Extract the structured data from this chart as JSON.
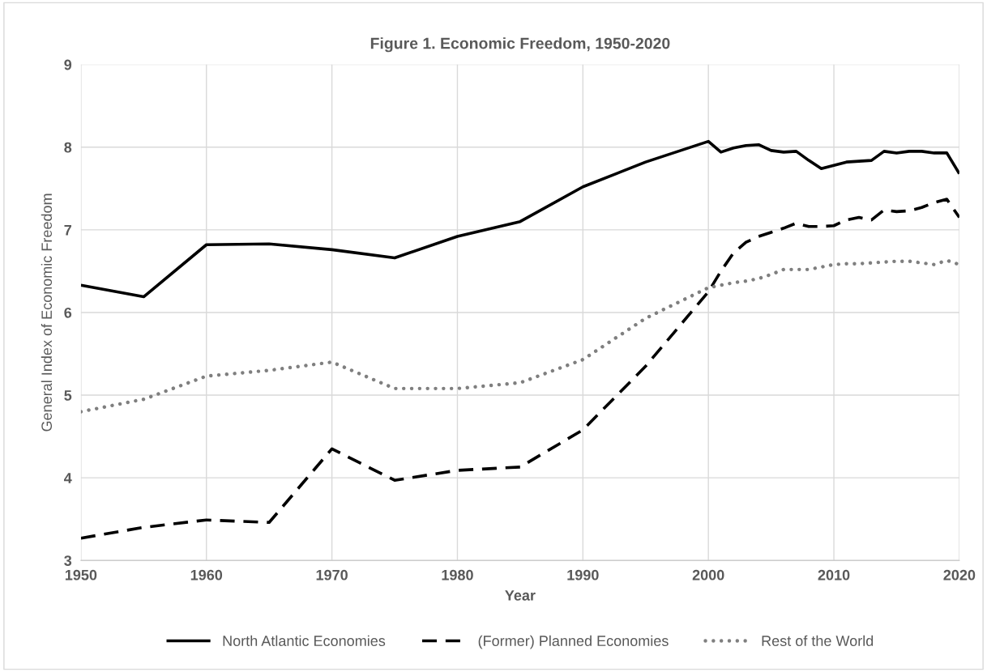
{
  "chart_data": {
    "type": "line",
    "title": "Figure 1. Economic Freedom, 1950-2020",
    "xlabel": "Year",
    "ylabel": "General Index of Economic Freedom",
    "x": [
      1950,
      1955,
      1960,
      1965,
      1970,
      1975,
      1980,
      1985,
      1990,
      1995,
      2000,
      2001,
      2002,
      2003,
      2004,
      2005,
      2006,
      2007,
      2008,
      2009,
      2010,
      2011,
      2012,
      2013,
      2014,
      2015,
      2016,
      2017,
      2018,
      2019,
      2020
    ],
    "series": [
      {
        "name": "North Atlantic Economies",
        "color": "#000000",
        "line_style": "solid",
        "values": [
          6.33,
          6.19,
          6.82,
          6.83,
          6.76,
          6.66,
          6.92,
          7.1,
          7.52,
          7.82,
          8.07,
          7.94,
          7.99,
          8.02,
          8.03,
          7.96,
          7.94,
          7.95,
          7.84,
          7.74,
          7.78,
          7.82,
          7.83,
          7.84,
          7.95,
          7.93,
          7.95,
          7.95,
          7.93,
          7.93,
          7.68
        ]
      },
      {
        "name": "(Former) Planned Economies",
        "color": "#000000",
        "line_style": "dashed",
        "values": [
          3.27,
          3.4,
          3.49,
          3.46,
          4.35,
          3.97,
          4.09,
          4.13,
          4.58,
          5.35,
          6.25,
          6.5,
          6.72,
          6.85,
          6.92,
          6.97,
          7.02,
          7.08,
          7.04,
          7.04,
          7.05,
          7.12,
          7.15,
          7.12,
          7.24,
          7.22,
          7.23,
          7.27,
          7.33,
          7.37,
          7.15
        ]
      },
      {
        "name": "Rest of the World",
        "color": "#7f7f7f",
        "line_style": "dotted",
        "values": [
          4.8,
          4.95,
          5.23,
          5.3,
          5.4,
          5.08,
          5.08,
          5.15,
          5.43,
          5.93,
          6.3,
          6.33,
          6.36,
          6.38,
          6.41,
          6.46,
          6.52,
          6.52,
          6.52,
          6.55,
          6.58,
          6.59,
          6.59,
          6.6,
          6.61,
          6.62,
          6.62,
          6.6,
          6.58,
          6.63,
          6.58
        ]
      }
    ],
    "xlim": [
      1950,
      2020
    ],
    "xticks": [
      1950,
      1960,
      1970,
      1980,
      1990,
      2000,
      2010,
      2020
    ],
    "ylim": [
      3,
      9
    ],
    "yticks": [
      3,
      4,
      5,
      6,
      7,
      8,
      9
    ],
    "grid": true,
    "legend": "bottom",
    "marker": "none"
  }
}
